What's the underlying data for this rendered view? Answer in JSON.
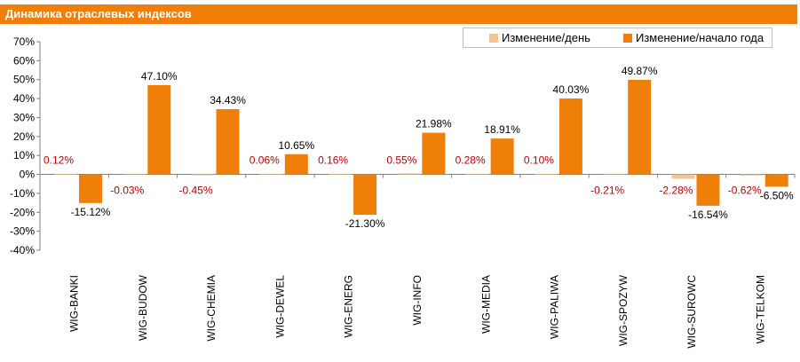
{
  "window": {
    "title": "Динамика отраслевых индексов"
  },
  "colors": {
    "header_bg": "#f07f09",
    "day": "#f9c18e",
    "ytd": "#f07f09",
    "day_label": "#c00000",
    "ytd_label": "#000000"
  },
  "chart_data": {
    "type": "bar",
    "title": "Динамика отраслевых индексов",
    "categories": [
      "WIG-BANKI",
      "WIG-BUDOW",
      "WIG-CHEMIA",
      "WIG-DEWEL",
      "WIG-ENERG",
      "WIG-INFO",
      "WIG-MEDIA",
      "WIG-PALIWA",
      "WIG-SPOZYW",
      "WIG-SUROWC",
      "WIG-TELKOM"
    ],
    "series": [
      {
        "name": "Изменение/день",
        "values": [
          0.12,
          -0.03,
          -0.45,
          0.06,
          0.16,
          0.55,
          0.28,
          0.1,
          -0.21,
          -2.28,
          -0.62
        ],
        "labels": [
          "0.12%",
          "-0.03%",
          "-0.45%",
          "0.06%",
          "0.16%",
          "0.55%",
          "0.28%",
          "0.10%",
          "-0.21%",
          "-2.28%",
          "-0.62%"
        ]
      },
      {
        "name": "Изменение/начало года",
        "values": [
          -15.12,
          47.1,
          34.43,
          10.65,
          -21.3,
          21.98,
          18.91,
          40.03,
          49.87,
          -16.54,
          -6.5
        ],
        "labels": [
          "-15.12%",
          "47.10%",
          "34.43%",
          "10.65%",
          "-21.30%",
          "21.98%",
          "18.91%",
          "40.03%",
          "49.87%",
          "-16.54%",
          "-6.50%"
        ]
      }
    ],
    "ylim": [
      -40,
      70
    ],
    "yticks": [
      70,
      60,
      50,
      40,
      30,
      20,
      10,
      0,
      -10,
      -20,
      -30,
      -40
    ],
    "ytick_labels": [
      "70%",
      "60%",
      "50%",
      "40%",
      "30%",
      "20%",
      "10%",
      "0%",
      "-10%",
      "-20%",
      "-30%",
      "-40%"
    ],
    "xlabel": "",
    "ylabel": "",
    "grid": false,
    "legend": "top-right"
  }
}
